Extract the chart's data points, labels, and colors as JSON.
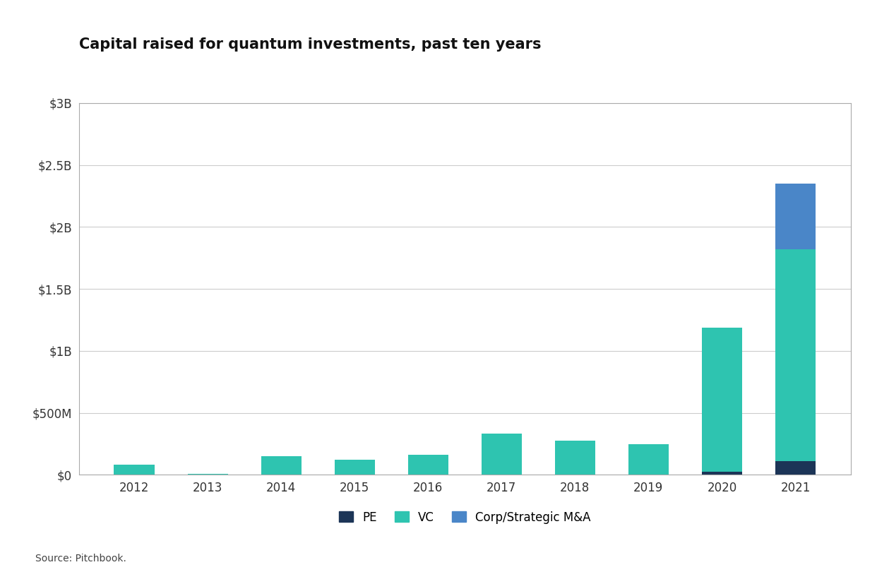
{
  "title": "Capital raised for quantum investments, past ten years",
  "source": "Source: Pitchbook.",
  "years": [
    "2012",
    "2013",
    "2014",
    "2015",
    "2016",
    "2017",
    "2018",
    "2019",
    "2020",
    "2021"
  ],
  "PE": [
    0,
    0,
    0,
    0,
    0,
    0,
    0,
    0,
    25,
    110
  ],
  "VC": [
    80,
    10,
    150,
    120,
    160,
    330,
    275,
    245,
    1160,
    1710
  ],
  "Corp_MA": [
    0,
    0,
    0,
    0,
    0,
    0,
    0,
    0,
    0,
    530
  ],
  "colors": {
    "PE": "#1c3557",
    "VC": "#2ec4b0",
    "Corp_MA": "#4a86c8"
  },
  "ylim": [
    0,
    3000
  ],
  "yticks": [
    0,
    500,
    1000,
    1500,
    2000,
    2500,
    3000
  ],
  "ytick_labels": [
    "$0",
    "$500M",
    "$1B",
    "$1.5B",
    "$2B",
    "$2.5B",
    "$3B"
  ],
  "background_color": "#ffffff",
  "plot_bg_color": "#ffffff",
  "title_fontsize": 15,
  "legend_labels": [
    "PE",
    "VC",
    "Corp/Strategic M&A"
  ],
  "bar_width": 0.55
}
